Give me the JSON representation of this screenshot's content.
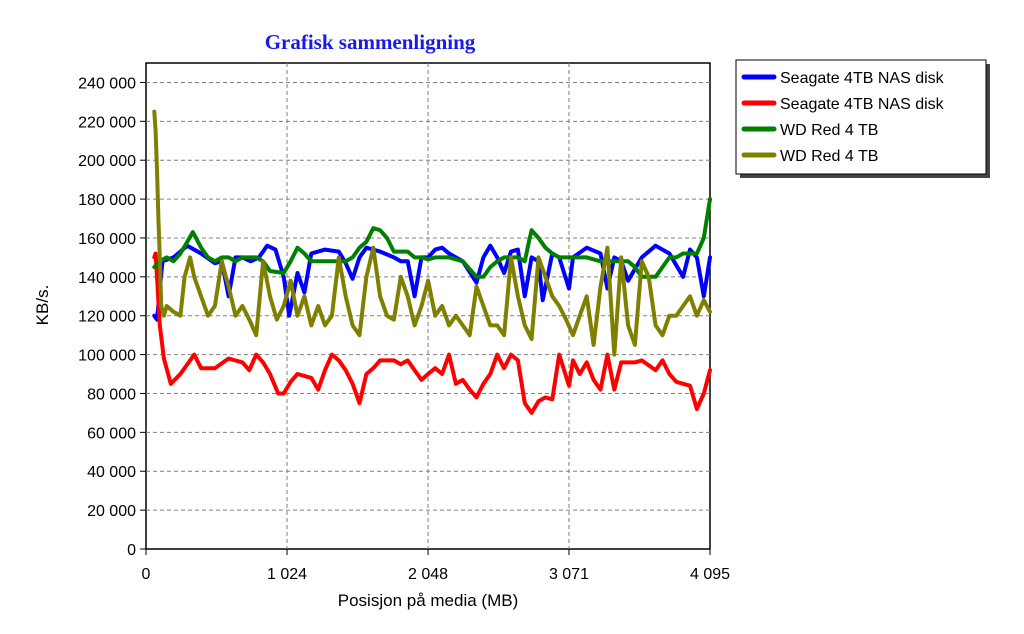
{
  "chart_data": {
    "type": "line",
    "title": "Grafisk sammenligning",
    "xlabel": "Posisjon på media (MB)",
    "ylabel": "KB/s.",
    "xlim": [
      0,
      4095
    ],
    "ylim": [
      0,
      250000
    ],
    "x_ticks": [
      {
        "value": 0,
        "label": "0"
      },
      {
        "value": 1024,
        "label": "1 024"
      },
      {
        "value": 2048,
        "label": "2 048"
      },
      {
        "value": 3071,
        "label": "3 071"
      },
      {
        "value": 4095,
        "label": "4 095"
      }
    ],
    "y_ticks": [
      {
        "value": 0,
        "label": "0"
      },
      {
        "value": 20000,
        "label": "20 000"
      },
      {
        "value": 40000,
        "label": "40 000"
      },
      {
        "value": 60000,
        "label": "60 000"
      },
      {
        "value": 80000,
        "label": "80 000"
      },
      {
        "value": 100000,
        "label": "100 000"
      },
      {
        "value": 120000,
        "label": "120 000"
      },
      {
        "value": 140000,
        "label": "140 000"
      },
      {
        "value": 160000,
        "label": "160 000"
      },
      {
        "value": 180000,
        "label": "180 000"
      },
      {
        "value": 200000,
        "label": "200 000"
      },
      {
        "value": 220000,
        "label": "220 000"
      },
      {
        "value": 240000,
        "label": "240 000"
      }
    ],
    "grid": true,
    "legend_position": "right",
    "series": [
      {
        "name": "Seagate 4TB NAS disk",
        "color": "#0000ff",
        "x": [
          60,
          80,
          120,
          200,
          300,
          400,
          500,
          550,
          600,
          650,
          700,
          760,
          820,
          880,
          940,
          1000,
          1040,
          1100,
          1150,
          1200,
          1300,
          1400,
          1450,
          1500,
          1550,
          1600,
          1700,
          1800,
          1850,
          1900,
          1950,
          2000,
          2048,
          2100,
          2150,
          2200,
          2300,
          2400,
          2450,
          2500,
          2550,
          2600,
          2650,
          2700,
          2750,
          2800,
          2850,
          2880,
          2950,
          3000,
          3071,
          3100,
          3200,
          3300,
          3350,
          3400,
          3450,
          3500,
          3600,
          3700,
          3800,
          3900,
          3950,
          4000,
          4050,
          4095
        ],
        "y": [
          120000,
          118000,
          148000,
          150000,
          156000,
          152000,
          147000,
          148000,
          130000,
          150000,
          150000,
          148000,
          150000,
          156000,
          154000,
          140000,
          120000,
          142000,
          132000,
          152000,
          154000,
          153000,
          147000,
          139000,
          150000,
          155000,
          153000,
          150000,
          148000,
          148000,
          130000,
          150000,
          150000,
          154000,
          155000,
          152000,
          148000,
          137000,
          150000,
          156000,
          150000,
          142000,
          153000,
          154000,
          130000,
          150000,
          148000,
          128000,
          152000,
          150000,
          134000,
          150000,
          155000,
          152000,
          134000,
          150000,
          148000,
          138000,
          150000,
          156000,
          152000,
          140000,
          154000,
          150000,
          130000,
          150000
        ]
      },
      {
        "name": "Seagate 4TB NAS disk",
        "color": "#ff0000",
        "x": [
          60,
          70,
          80,
          100,
          130,
          180,
          250,
          350,
          400,
          500,
          600,
          700,
          750,
          800,
          850,
          900,
          960,
          1000,
          1050,
          1100,
          1200,
          1250,
          1300,
          1350,
          1400,
          1450,
          1500,
          1550,
          1600,
          1650,
          1700,
          1800,
          1850,
          1900,
          1950,
          2000,
          2048,
          2100,
          2150,
          2200,
          2250,
          2300,
          2350,
          2400,
          2450,
          2500,
          2550,
          2600,
          2650,
          2700,
          2750,
          2800,
          2850,
          2900,
          2950,
          3000,
          3071,
          3100,
          3150,
          3200,
          3250,
          3300,
          3350,
          3400,
          3450,
          3500,
          3550,
          3600,
          3700,
          3750,
          3800,
          3850,
          3900,
          3950,
          4000,
          4050,
          4095
        ],
        "y": [
          150000,
          152000,
          140000,
          115000,
          98000,
          85000,
          90000,
          100000,
          93000,
          93000,
          98000,
          96000,
          92000,
          100000,
          96000,
          90000,
          80000,
          80000,
          86000,
          90000,
          88000,
          82000,
          92000,
          100000,
          97000,
          92000,
          85000,
          75000,
          90000,
          93000,
          97000,
          97000,
          95000,
          97000,
          92000,
          87000,
          90000,
          93000,
          90000,
          100000,
          85000,
          87000,
          82000,
          78000,
          85000,
          90000,
          100000,
          93000,
          100000,
          97000,
          75000,
          70000,
          76000,
          78000,
          77000,
          100000,
          84000,
          97000,
          90000,
          96000,
          87000,
          82000,
          100000,
          82000,
          96000,
          96000,
          96000,
          97000,
          92000,
          97000,
          90000,
          86000,
          85000,
          84000,
          72000,
          80000,
          92000
        ]
      },
      {
        "name": "WD Red 4 TB",
        "color": "#008000",
        "x": [
          60,
          100,
          150,
          200,
          250,
          300,
          340,
          400,
          450,
          500,
          550,
          600,
          650,
          700,
          800,
          850,
          900,
          1000,
          1050,
          1100,
          1150,
          1200,
          1300,
          1400,
          1450,
          1500,
          1550,
          1600,
          1650,
          1700,
          1750,
          1800,
          1900,
          1950,
          2000,
          2048,
          2100,
          2200,
          2300,
          2400,
          2450,
          2500,
          2550,
          2600,
          2700,
          2750,
          2780,
          2800,
          2850,
          2900,
          2950,
          3000,
          3071,
          3100,
          3200,
          3300,
          3400,
          3450,
          3500,
          3550,
          3600,
          3650,
          3700,
          3800,
          3850,
          3900,
          4000,
          4050,
          4095
        ],
        "y": [
          145000,
          148000,
          150000,
          148000,
          152000,
          158000,
          163000,
          155000,
          150000,
          148000,
          150000,
          150000,
          148000,
          150000,
          150000,
          148000,
          143000,
          142000,
          148000,
          155000,
          152000,
          148000,
          148000,
          148000,
          148000,
          150000,
          155000,
          158000,
          165000,
          164000,
          160000,
          153000,
          153000,
          150000,
          150000,
          149000,
          150000,
          150000,
          148000,
          140000,
          140000,
          145000,
          148000,
          150000,
          150000,
          148000,
          158000,
          164000,
          160000,
          155000,
          152000,
          150000,
          150000,
          150000,
          150000,
          148000,
          148000,
          148000,
          148000,
          145000,
          140000,
          140000,
          140000,
          150000,
          150000,
          152000,
          152000,
          160000,
          180000
        ]
      },
      {
        "name": "WD Red 4 TB",
        "color": "#808000",
        "x": [
          60,
          70,
          80,
          90,
          100,
          110,
          130,
          150,
          200,
          250,
          280,
          320,
          350,
          400,
          450,
          500,
          550,
          580,
          600,
          650,
          700,
          750,
          800,
          850,
          900,
          950,
          1000,
          1050,
          1100,
          1150,
          1200,
          1250,
          1300,
          1350,
          1400,
          1450,
          1500,
          1550,
          1600,
          1650,
          1700,
          1750,
          1800,
          1850,
          1900,
          1950,
          2000,
          2048,
          2100,
          2150,
          2200,
          2250,
          2300,
          2350,
          2400,
          2450,
          2500,
          2550,
          2600,
          2650,
          2700,
          2750,
          2800,
          2850,
          2900,
          2950,
          3000,
          3050,
          3100,
          3150,
          3200,
          3250,
          3300,
          3350,
          3400,
          3450,
          3500,
          3550,
          3600,
          3650,
          3700,
          3750,
          3800,
          3850,
          3900,
          3950,
          4000,
          4050,
          4095
        ],
        "y": [
          225000,
          215000,
          195000,
          170000,
          150000,
          125000,
          120000,
          125000,
          122000,
          120000,
          140000,
          150000,
          140000,
          130000,
          120000,
          125000,
          148000,
          140000,
          135000,
          120000,
          125000,
          118000,
          110000,
          148000,
          130000,
          118000,
          125000,
          138000,
          120000,
          130000,
          115000,
          125000,
          115000,
          120000,
          150000,
          130000,
          115000,
          110000,
          140000,
          155000,
          130000,
          120000,
          118000,
          140000,
          130000,
          115000,
          125000,
          138000,
          120000,
          125000,
          115000,
          120000,
          115000,
          110000,
          135000,
          125000,
          115000,
          115000,
          110000,
          150000,
          130000,
          115000,
          108000,
          150000,
          140000,
          130000,
          125000,
          118000,
          110000,
          120000,
          130000,
          105000,
          135000,
          155000,
          100000,
          150000,
          115000,
          105000,
          148000,
          140000,
          115000,
          110000,
          120000,
          120000,
          125000,
          130000,
          120000,
          128000,
          122000
        ]
      }
    ]
  }
}
